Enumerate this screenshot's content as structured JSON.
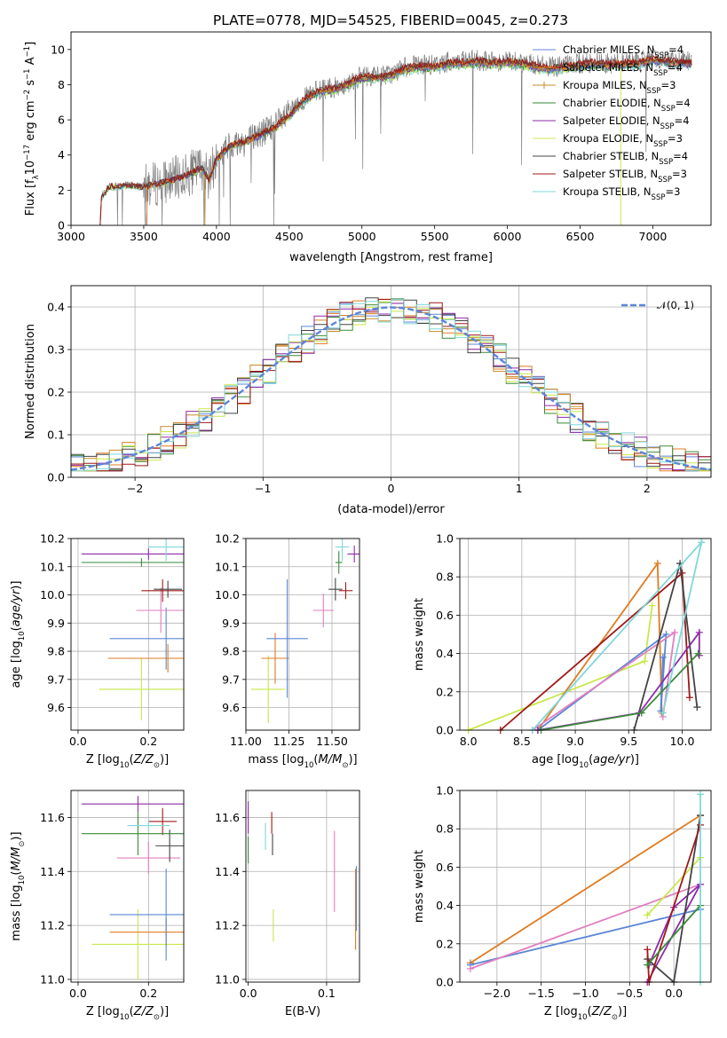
{
  "figure": {
    "title": "PLATE=0778, MJD=54525, FIBERID=0045, z=0.273",
    "colors": {
      "chabrier_miles": "#5b86d6",
      "salpeter_miles": "#e07b20",
      "kroupa_miles": "#c98a2a",
      "chabrier_elodie": "#3a8a3a",
      "salpeter_elodie": "#8e2aa8",
      "kroupa_elodie": "#c8e84a",
      "chabrier_stelib": "#444444",
      "salpeter_stelib": "#a01818",
      "kroupa_stelib": "#7fd7da",
      "extra_pink": "#e07fc0",
      "data_spectrum": "#808080",
      "gaussian": "#5b86d6"
    }
  },
  "chart_data": [
    {
      "id": "spectrum",
      "type": "line",
      "title": "PLATE=0778, MJD=54525, FIBERID=0045, z=0.273",
      "xlabel": "wavelength [Angstrom, rest frame]",
      "ylabel": "Flux [f_λ10^-17 erg cm^-2 s^-1 A^-1]",
      "xlim": [
        3000,
        7400
      ],
      "ylim": [
        0,
        11
      ],
      "xticks": [
        "3000",
        "3500",
        "4000",
        "4500",
        "5000",
        "5500",
        "6000",
        "6500",
        "7000"
      ],
      "yticks": [
        "0",
        "2",
        "4",
        "6",
        "8",
        "10"
      ],
      "grid": false,
      "legend_position": "top-right",
      "legend": [
        {
          "label": "Chabrier MILES, N",
          "sub": "SSP",
          "eq": "=4",
          "color": "chabrier_miles"
        },
        {
          "label": "Salpeter MILES, N",
          "sub": "SSP",
          "eq": "=4",
          "color": "salpeter_miles"
        },
        {
          "label": "Kroupa MILES, N",
          "sub": "SSP",
          "eq": "=3",
          "color": "kroupa_miles"
        },
        {
          "label": "Chabrier ELODIE, N",
          "sub": "SSP",
          "eq": "=4",
          "color": "chabrier_elodie"
        },
        {
          "label": "Salpeter ELODIE, N",
          "sub": "SSP",
          "eq": "=4",
          "color": "salpeter_elodie"
        },
        {
          "label": "Kroupa ELODIE, N",
          "sub": "SSP",
          "eq": "=3",
          "color": "kroupa_elodie"
        },
        {
          "label": "Chabrier STELIB, N",
          "sub": "SSP",
          "eq": "=4",
          "color": "chabrier_stelib"
        },
        {
          "label": "Salpeter STELIB, N",
          "sub": "SSP",
          "eq": "=3",
          "color": "salpeter_stelib"
        },
        {
          "label": "Kroupa STELIB, N",
          "sub": "SSP",
          "eq": "=3",
          "color": "kroupa_stelib"
        }
      ],
      "continuum": [
        [
          3200,
          0
        ],
        [
          3210,
          1.6
        ],
        [
          3260,
          2.2
        ],
        [
          3400,
          2.3
        ],
        [
          3500,
          2.2
        ],
        [
          3600,
          2.4
        ],
        [
          3700,
          2.6
        ],
        [
          3800,
          2.9
        ],
        [
          3900,
          3.3
        ],
        [
          3950,
          2.6
        ],
        [
          4000,
          3.8
        ],
        [
          4100,
          4.6
        ],
        [
          4200,
          4.8
        ],
        [
          4300,
          5.2
        ],
        [
          4400,
          5.6
        ],
        [
          4500,
          6.3
        ],
        [
          4600,
          7.2
        ],
        [
          4700,
          7.7
        ],
        [
          4800,
          7.8
        ],
        [
          4900,
          8.1
        ],
        [
          5000,
          8.5
        ],
        [
          5100,
          8.5
        ],
        [
          5200,
          8.6
        ],
        [
          5300,
          9.0
        ],
        [
          5400,
          9.1
        ],
        [
          5500,
          9.1
        ],
        [
          5600,
          9.3
        ],
        [
          5700,
          9.3
        ],
        [
          5800,
          9.4
        ],
        [
          5900,
          9.3
        ],
        [
          6000,
          9.4
        ],
        [
          6100,
          9.3
        ],
        [
          6200,
          9.1
        ],
        [
          6300,
          9.0
        ],
        [
          6400,
          9.1
        ],
        [
          6500,
          9.2
        ],
        [
          6600,
          9.3
        ],
        [
          6700,
          9.2
        ],
        [
          6800,
          9.3
        ],
        [
          6900,
          9.3
        ],
        [
          7000,
          9.5
        ],
        [
          7100,
          9.4
        ],
        [
          7200,
          9.3
        ],
        [
          7270,
          9.3
        ]
      ],
      "model_starts": [
        3200,
        3520,
        3900,
        3920
      ]
    },
    {
      "id": "residuals",
      "type": "histogram",
      "xlabel": "(data-model)/error",
      "ylabel": "Normed distribution",
      "xlim": [
        -2.5,
        2.5
      ],
      "ylim": [
        0,
        0.45
      ],
      "xticks": [
        "−2",
        "−1",
        "0",
        "1",
        "2"
      ],
      "yticks": [
        "0.0",
        "0.1",
        "0.2",
        "0.3",
        "0.4"
      ],
      "grid": true,
      "legend_position": "top-right",
      "legend_label": "𝒩(0, 1)",
      "bin_width": 0.1
    },
    {
      "id": "age_vs_Z",
      "type": "errorbar",
      "xlabel": "Z [log10(Z/Z⊙)]",
      "ylabel": "age  [log10(age/yr)]",
      "xlim": [
        -0.02,
        0.3
      ],
      "ylim": [
        9.52,
        10.2
      ],
      "xticks": [
        "0.0",
        "0.2"
      ],
      "yticks": [
        "9.6",
        "9.7",
        "9.8",
        "9.9",
        "10.0",
        "10.1",
        "10.2"
      ],
      "grid": true,
      "points": [
        {
          "x": 0.18,
          "xerr": 0.12,
          "y": 9.665,
          "yerr": 0.11,
          "color": "kroupa_elodie"
        },
        {
          "x": 0.255,
          "xerr": 0.17,
          "y": 9.775,
          "yerr": 0.05,
          "color": "salpeter_miles"
        },
        {
          "x": 0.25,
          "xerr": 0.16,
          "y": 9.845,
          "yerr": 0.11,
          "color": "chabrier_miles"
        },
        {
          "x": 0.235,
          "xerr": 0.07,
          "y": 9.945,
          "yerr": 0.08,
          "color": "extra_pink"
        },
        {
          "x": 0.24,
          "xerr": 0.06,
          "y": 10.015,
          "yerr": 0.04,
          "color": "salpeter_stelib"
        },
        {
          "x": 0.255,
          "xerr": 0.04,
          "y": 10.02,
          "yerr": 0.03,
          "color": "chabrier_stelib"
        },
        {
          "x": 0.2,
          "xerr": 0.19,
          "y": 10.145,
          "yerr": 0.02,
          "color": "salpeter_elodie"
        },
        {
          "x": 0.18,
          "xerr": 0.17,
          "y": 10.115,
          "yerr": 0.015,
          "color": "chabrier_elodie"
        },
        {
          "x": 0.25,
          "xerr": 0.05,
          "y": 10.17,
          "yerr": 0.05,
          "color": "kroupa_stelib"
        }
      ]
    },
    {
      "id": "age_vs_mass",
      "type": "errorbar",
      "xlabel": "mass [log10(M/M⊙)]",
      "ylabel": "",
      "xlim": [
        11.0,
        11.66
      ],
      "ylim": [
        9.52,
        10.2
      ],
      "xticks": [
        "11.00",
        "11.25",
        "11.50"
      ],
      "yticks": [
        "9.6",
        "9.7",
        "9.8",
        "9.9",
        "10.0",
        "10.1",
        "10.2"
      ],
      "grid": true,
      "points": [
        {
          "x": 11.13,
          "xerr": 0.1,
          "y": 9.665,
          "yerr": 0.12,
          "color": "kroupa_elodie"
        },
        {
          "x": 11.17,
          "xerr": 0.08,
          "y": 9.775,
          "yerr": 0.09,
          "color": "salpeter_miles"
        },
        {
          "x": 11.24,
          "xerr": 0.12,
          "y": 9.845,
          "yerr": 0.21,
          "color": "chabrier_miles"
        },
        {
          "x": 11.45,
          "xerr": 0.06,
          "y": 9.945,
          "yerr": 0.06,
          "color": "extra_pink"
        },
        {
          "x": 11.58,
          "xerr": 0.04,
          "y": 10.015,
          "yerr": 0.03,
          "color": "salpeter_stelib"
        },
        {
          "x": 11.52,
          "xerr": 0.04,
          "y": 10.02,
          "yerr": 0.04,
          "color": "chabrier_stelib"
        },
        {
          "x": 11.63,
          "xerr": 0.04,
          "y": 10.145,
          "yerr": 0.03,
          "color": "salpeter_elodie"
        },
        {
          "x": 11.54,
          "xerr": 0.02,
          "y": 10.115,
          "yerr": 0.04,
          "color": "chabrier_elodie"
        },
        {
          "x": 11.56,
          "xerr": 0.04,
          "y": 10.17,
          "yerr": 0.05,
          "color": "kroupa_stelib"
        }
      ]
    },
    {
      "id": "weight_vs_age",
      "type": "line",
      "xlabel": "age  [log10(age/yr)]",
      "ylabel": "mass weight",
      "xlim": [
        7.92,
        10.27
      ],
      "ylim": [
        0,
        1
      ],
      "xticks": [
        "8.0",
        "8.5",
        "9.0",
        "9.5",
        "10.0"
      ],
      "yticks": [
        "0.0",
        "0.2",
        "0.4",
        "0.6",
        "0.8",
        "1.0"
      ],
      "grid": true,
      "series": [
        {
          "color": "kroupa_elodie",
          "points": [
            [
              8.0,
              0.0
            ],
            [
              9.65,
              0.36
            ],
            [
              9.72,
              0.65
            ]
          ]
        },
        {
          "color": "salpeter_miles",
          "points": [
            [
              8.65,
              0.0
            ],
            [
              9.77,
              0.87
            ],
            [
              9.81,
              0.09
            ]
          ]
        },
        {
          "color": "chabrier_miles",
          "points": [
            [
              8.65,
              0.0
            ],
            [
              9.85,
              0.5
            ],
            [
              9.8,
              0.1
            ],
            [
              9.82,
              0.38
            ]
          ]
        },
        {
          "color": "extra_pink",
          "points": [
            [
              8.6,
              0.0
            ],
            [
              9.93,
              0.51
            ],
            [
              9.82,
              0.07
            ]
          ]
        },
        {
          "color": "salpeter_stelib",
          "points": [
            [
              8.3,
              0.0
            ],
            [
              10.0,
              0.82
            ],
            [
              10.07,
              0.17
            ]
          ]
        },
        {
          "color": "chabrier_stelib",
          "points": [
            [
              9.55,
              0.0
            ],
            [
              9.98,
              0.87
            ],
            [
              10.14,
              0.12
            ]
          ]
        },
        {
          "color": "salpeter_elodie",
          "points": [
            [
              8.65,
              0.0
            ],
            [
              9.6,
              0.09
            ],
            [
              10.16,
              0.51
            ],
            [
              10.16,
              0.39
            ]
          ]
        },
        {
          "color": "chabrier_elodie",
          "points": [
            [
              8.68,
              0.0
            ],
            [
              9.62,
              0.09
            ],
            [
              10.15,
              0.4
            ]
          ]
        },
        {
          "color": "kroupa_stelib",
          "points": [
            [
              8.6,
              0.0
            ],
            [
              10.18,
              0.98
            ],
            [
              9.82,
              0.09
            ]
          ]
        }
      ]
    },
    {
      "id": "mass_vs_Z",
      "type": "errorbar",
      "xlabel": "Z [log10(Z/Z⊙)]",
      "ylabel": "mass [log10(M/M⊙)]",
      "xlim": [
        -0.02,
        0.3
      ],
      "ylim": [
        10.99,
        11.7
      ],
      "xticks": [
        "0.0",
        "0.2"
      ],
      "yticks": [
        "11.0",
        "11.2",
        "11.4",
        "11.6"
      ],
      "grid": true,
      "points": [
        {
          "x": 0.17,
          "xerr": 0.13,
          "y": 11.13,
          "yerr": 0.13,
          "color": "kroupa_elodie"
        },
        {
          "x": 0.25,
          "xerr": 0.16,
          "y": 11.175,
          "yerr": 0.05,
          "color": "salpeter_miles"
        },
        {
          "x": 0.25,
          "xerr": 0.16,
          "y": 11.24,
          "yerr": 0.17,
          "color": "chabrier_miles"
        },
        {
          "x": 0.2,
          "xerr": 0.09,
          "y": 11.45,
          "yerr": 0.06,
          "color": "extra_pink"
        },
        {
          "x": 0.24,
          "xerr": 0.04,
          "y": 11.585,
          "yerr": 0.05,
          "color": "salpeter_stelib"
        },
        {
          "x": 0.26,
          "xerr": 0.04,
          "y": 11.495,
          "yerr": 0.06,
          "color": "chabrier_stelib"
        },
        {
          "x": 0.17,
          "xerr": 0.16,
          "y": 11.65,
          "yerr": 0.03,
          "color": "salpeter_elodie"
        },
        {
          "x": 0.17,
          "xerr": 0.16,
          "y": 11.54,
          "yerr": 0.08,
          "color": "chabrier_elodie"
        },
        {
          "x": 0.2,
          "xerr": 0.06,
          "y": 11.57,
          "yerr": 0.02,
          "color": "kroupa_stelib"
        }
      ]
    },
    {
      "id": "mass_vs_ebv",
      "type": "errorbar",
      "xlabel": "E(B-V)",
      "ylabel": "",
      "xlim": [
        -0.003,
        0.142
      ],
      "ylim": [
        10.99,
        11.7
      ],
      "xticks": [
        "0.0",
        "0.1"
      ],
      "yticks": [
        "11.0",
        "11.2",
        "11.4",
        "11.6"
      ],
      "grid": true,
      "points": [
        {
          "x": 0.0,
          "y": 11.6,
          "yerr": 0.06,
          "color": "salpeter_elodie"
        },
        {
          "x": 0.0,
          "y": 11.48,
          "yerr": 0.05,
          "color": "chabrier_elodie"
        },
        {
          "x": 0.022,
          "y": 11.53,
          "yerr": 0.05,
          "color": "kroupa_stelib"
        },
        {
          "x": 0.032,
          "y": 11.2,
          "yerr": 0.06,
          "color": "kroupa_elodie"
        },
        {
          "x": 0.03,
          "y": 11.58,
          "yerr": 0.04,
          "color": "salpeter_stelib"
        },
        {
          "x": 0.031,
          "y": 11.5,
          "yerr": 0.04,
          "color": "chabrier_stelib"
        },
        {
          "x": 0.11,
          "y": 11.4,
          "yerr": 0.15,
          "color": "extra_pink"
        },
        {
          "x": 0.137,
          "y": 11.26,
          "yerr": 0.15,
          "color": "salpeter_miles"
        },
        {
          "x": 0.138,
          "y": 11.3,
          "yerr": 0.12,
          "color": "chabrier_miles"
        }
      ]
    },
    {
      "id": "weight_vs_Z",
      "type": "line",
      "xlabel": "Z [log10(Z/Z⊙)]",
      "ylabel": "mass weight",
      "xlim": [
        -2.42,
        0.42
      ],
      "ylim": [
        0,
        1
      ],
      "xticks": [
        "−2.0",
        "−1.5",
        "−1.0",
        "−0.5",
        "0.0"
      ],
      "yticks": [
        "0.0",
        "0.2",
        "0.4",
        "0.6",
        "0.8",
        "1.0"
      ],
      "grid": true,
      "series": [
        {
          "color": "salpeter_miles",
          "points": [
            [
              -2.3,
              0.1
            ],
            [
              0.3,
              0.87
            ]
          ]
        },
        {
          "color": "chabrier_miles",
          "points": [
            [
              -2.3,
              0.09
            ],
            [
              0.3,
              0.38
            ]
          ]
        },
        {
          "color": "extra_pink",
          "points": [
            [
              -2.3,
              0.07
            ],
            [
              0.3,
              0.51
            ]
          ]
        },
        {
          "color": "kroupa_elodie",
          "points": [
            [
              -0.3,
              0.35
            ],
            [
              0.3,
              0.65
            ]
          ]
        },
        {
          "color": "salpeter_elodie",
          "points": [
            [
              -0.3,
              0.0
            ],
            [
              0.3,
              0.51
            ],
            [
              0.0,
              0.39
            ],
            [
              -0.28,
              0.09
            ]
          ]
        },
        {
          "color": "chabrier_stelib",
          "points": [
            [
              -0.3,
              0.12
            ],
            [
              0.0,
              0.0
            ],
            [
              0.3,
              0.87
            ]
          ]
        },
        {
          "color": "salpeter_stelib",
          "points": [
            [
              -0.3,
              0.17
            ],
            [
              -0.28,
              0.0
            ],
            [
              0.3,
              0.82
            ]
          ]
        },
        {
          "color": "chabrier_elodie",
          "points": [
            [
              -0.3,
              0.09
            ],
            [
              0.3,
              0.4
            ]
          ]
        },
        {
          "color": "kroupa_stelib",
          "points": [
            [
              0.3,
              0.0
            ],
            [
              0.3,
              0.98
            ]
          ]
        }
      ]
    }
  ]
}
